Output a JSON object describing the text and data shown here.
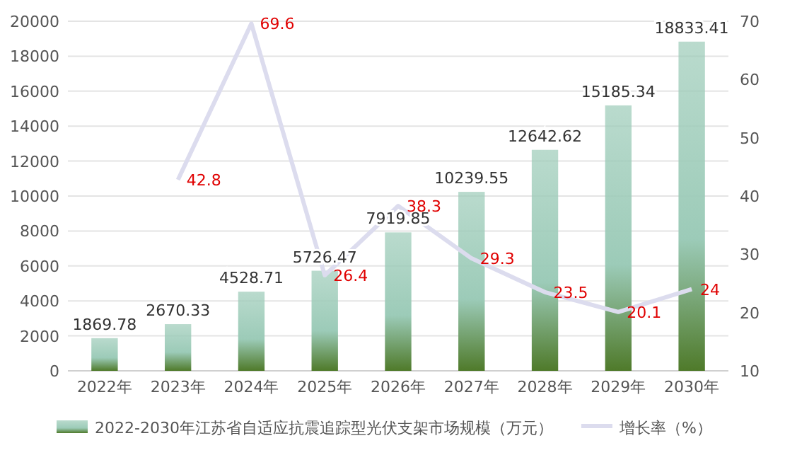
{
  "chart_data": {
    "type": "bar",
    "categories": [
      "2022年",
      "2023年",
      "2024年",
      "2025年",
      "2026年",
      "2027年",
      "2028年",
      "2029年",
      "2030年"
    ],
    "series": [
      {
        "name": "2022-2030年江苏省自适应抗震追踪型光伏支架市场规模（万元）",
        "color": "#9ccbb8",
        "values": [
          1869.78,
          2670.33,
          4528.71,
          5726.47,
          7919.85,
          10239.55,
          12642.62,
          15185.34,
          18833.41
        ]
      },
      {
        "name": "增长率（%）",
        "type": "line",
        "axis": "y2",
        "color": "#dcdcee",
        "values": [
          null,
          42.8,
          69.6,
          26.4,
          38.3,
          29.3,
          23.5,
          20.1,
          24
        ]
      }
    ],
    "ylim": [
      0,
      20000
    ],
    "yticks": [
      0,
      2000,
      4000,
      6000,
      8000,
      10000,
      12000,
      14000,
      16000,
      18000,
      20000
    ],
    "y2lim": [
      10,
      70
    ],
    "y2ticks": [
      10,
      20,
      30,
      40,
      50,
      60,
      70
    ],
    "data_labels": true,
    "grid": "y",
    "legend": "bottom",
    "marker": "none"
  }
}
